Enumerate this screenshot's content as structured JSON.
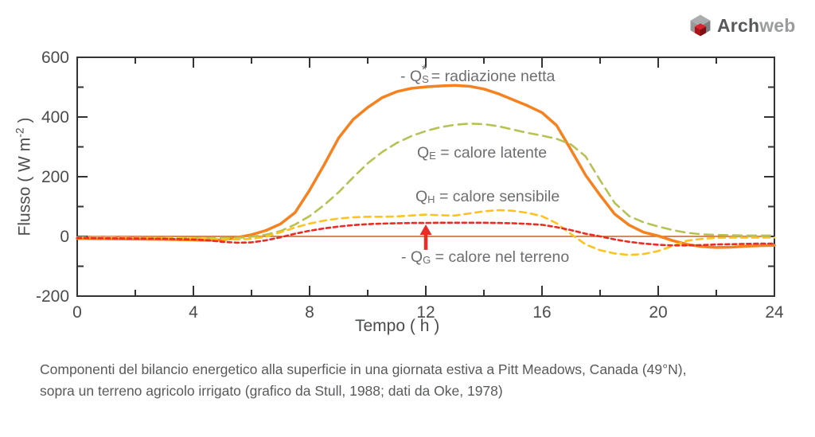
{
  "logo": {
    "bold": "Arch",
    "light": "web"
  },
  "axes": {
    "xlabel": "Tempo ( h )",
    "ylabel_prefix": "Flusso ( W m",
    "ylabel_sup": "-2",
    "ylabel_suffix": " )"
  },
  "legend": {
    "net_radiation": {
      "prefix": "- Q",
      "sub": "S",
      "sup": "*",
      "text": " = radiazione netta"
    },
    "latent_heat": {
      "prefix": "Q",
      "sub": "E",
      "sup": "",
      "text": " = calore latente"
    },
    "sensible_heat": {
      "prefix": "Q",
      "sub": "H",
      "sup": "",
      "text": " = calore sensibile"
    },
    "ground_heat": {
      "prefix": "- Q",
      "sub": "G",
      "sup": "",
      "text": " = calore nel terreno"
    }
  },
  "caption": {
    "line1": "Componenti del bilancio energetico alla superficie in una giornata estiva a Pitt Meadows, Canada (49°N),",
    "line2": "sopra un terreno agricolo irrigato (grafico da Stull, 1988; dati da Oke, 1978)"
  },
  "chart_data": {
    "type": "line",
    "xlabel": "Tempo ( h )",
    "ylabel": "Flusso ( W m-2 )",
    "x_range": [
      0,
      24
    ],
    "y_range": [
      -200,
      600
    ],
    "x_major_ticks": [
      0,
      4,
      8,
      12,
      16,
      20,
      24
    ],
    "x_minor_ticks": [
      2,
      6,
      10,
      14,
      18,
      22
    ],
    "y_major_ticks": [
      -200,
      0,
      200,
      400,
      600
    ],
    "y_minor_ticks": [
      -100,
      100,
      300,
      500
    ],
    "grid": false,
    "frame_color": "#333333",
    "tick_label_color": "#4b4c4e",
    "zero_line": {
      "y": 0,
      "color": "#c4612c"
    },
    "annotation_arrow": {
      "x": 12,
      "from_value": -45,
      "to_value": 40,
      "color": "#ee2a24"
    },
    "series": [
      {
        "name": "net_radiation",
        "label": "- Qs* = radiazione netta",
        "color": "#f5821f",
        "style": "solid",
        "width": 3.5,
        "dash": "",
        "points": [
          [
            0,
            -7
          ],
          [
            1,
            -8
          ],
          [
            2,
            -9
          ],
          [
            3,
            -10
          ],
          [
            4,
            -12
          ],
          [
            4.5,
            -13
          ],
          [
            5,
            -12
          ],
          [
            5.5,
            -4
          ],
          [
            6,
            6
          ],
          [
            6.5,
            20
          ],
          [
            7,
            42
          ],
          [
            7.5,
            80
          ],
          [
            8,
            155
          ],
          [
            8.5,
            240
          ],
          [
            9,
            330
          ],
          [
            9.5,
            392
          ],
          [
            10,
            432
          ],
          [
            10.5,
            465
          ],
          [
            11,
            485
          ],
          [
            11.5,
            496
          ],
          [
            12,
            501
          ],
          [
            12.5,
            504
          ],
          [
            13,
            506
          ],
          [
            13.5,
            503
          ],
          [
            14,
            494
          ],
          [
            14.5,
            478
          ],
          [
            15,
            458
          ],
          [
            15.5,
            438
          ],
          [
            16,
            415
          ],
          [
            16.5,
            372
          ],
          [
            17,
            290
          ],
          [
            17.5,
            205
          ],
          [
            18,
            138
          ],
          [
            18.5,
            75
          ],
          [
            19,
            38
          ],
          [
            19.5,
            14
          ],
          [
            20,
            2
          ],
          [
            20.5,
            -14
          ],
          [
            21,
            -27
          ],
          [
            21.5,
            -34
          ],
          [
            22,
            -37
          ],
          [
            22.5,
            -36
          ],
          [
            23,
            -33
          ],
          [
            23.5,
            -31
          ],
          [
            24,
            -30
          ]
        ]
      },
      {
        "name": "latent_heat",
        "label": "QE = calore latente",
        "color": "#b7c154",
        "style": "dashed",
        "width": 2.6,
        "dash": "11 7",
        "points": [
          [
            0,
            -3
          ],
          [
            1,
            -3
          ],
          [
            2,
            -4
          ],
          [
            3,
            -4
          ],
          [
            4,
            -5
          ],
          [
            5,
            -6
          ],
          [
            5.5,
            -5
          ],
          [
            6,
            -1
          ],
          [
            6.5,
            6
          ],
          [
            7,
            18
          ],
          [
            7.5,
            40
          ],
          [
            8,
            68
          ],
          [
            8.5,
            105
          ],
          [
            9,
            148
          ],
          [
            9.5,
            198
          ],
          [
            10,
            245
          ],
          [
            10.5,
            283
          ],
          [
            11,
            313
          ],
          [
            11.5,
            336
          ],
          [
            12,
            353
          ],
          [
            12.5,
            366
          ],
          [
            13,
            374
          ],
          [
            13.5,
            378
          ],
          [
            14,
            376
          ],
          [
            14.5,
            369
          ],
          [
            15,
            358
          ],
          [
            15.5,
            347
          ],
          [
            16,
            338
          ],
          [
            16.5,
            327
          ],
          [
            17,
            308
          ],
          [
            17.5,
            268
          ],
          [
            18,
            188
          ],
          [
            18.5,
            112
          ],
          [
            19,
            68
          ],
          [
            19.5,
            47
          ],
          [
            20,
            33
          ],
          [
            20.5,
            21
          ],
          [
            21,
            12
          ],
          [
            21.5,
            7
          ],
          [
            22,
            5
          ],
          [
            22.5,
            4
          ],
          [
            23,
            3
          ],
          [
            23.5,
            3
          ],
          [
            24,
            3
          ]
        ]
      },
      {
        "name": "sensible_heat",
        "label": "QH = calore sensibile",
        "color": "#ffc31e",
        "style": "dashed",
        "width": 2.6,
        "dash": "8 6",
        "points": [
          [
            0,
            -4
          ],
          [
            1,
            -4
          ],
          [
            2,
            -5
          ],
          [
            3,
            -5
          ],
          [
            4,
            -6
          ],
          [
            4.5,
            -7
          ],
          [
            5,
            -9
          ],
          [
            5.5,
            -10
          ],
          [
            6,
            -8
          ],
          [
            6.5,
            -1
          ],
          [
            7,
            14
          ],
          [
            7.5,
            30
          ],
          [
            8,
            43
          ],
          [
            8.5,
            53
          ],
          [
            9,
            60
          ],
          [
            9.5,
            64
          ],
          [
            10,
            66
          ],
          [
            10.5,
            66
          ],
          [
            11,
            67
          ],
          [
            11.5,
            70
          ],
          [
            12,
            73
          ],
          [
            12.5,
            71
          ],
          [
            13,
            70
          ],
          [
            13.5,
            77
          ],
          [
            14,
            84
          ],
          [
            14.5,
            88
          ],
          [
            15,
            86
          ],
          [
            15.5,
            79
          ],
          [
            16,
            68
          ],
          [
            16.5,
            44
          ],
          [
            17,
            8
          ],
          [
            17.5,
            -27
          ],
          [
            18,
            -46
          ],
          [
            18.5,
            -57
          ],
          [
            19,
            -62
          ],
          [
            19.5,
            -59
          ],
          [
            20,
            -49
          ],
          [
            20.5,
            -32
          ],
          [
            21,
            -14
          ],
          [
            21.5,
            -8
          ],
          [
            22,
            -5
          ],
          [
            22.5,
            -4
          ],
          [
            23,
            -4
          ],
          [
            23.5,
            -4
          ],
          [
            24,
            -4
          ]
        ]
      },
      {
        "name": "ground_heat",
        "label": "- QG = calore nel terreno",
        "color": "#ee2a24",
        "style": "dashed",
        "width": 2.6,
        "dash": "5 4",
        "points": [
          [
            0,
            -5
          ],
          [
            1,
            -6
          ],
          [
            2,
            -7
          ],
          [
            3,
            -8
          ],
          [
            4,
            -10
          ],
          [
            4.5,
            -13
          ],
          [
            5,
            -18
          ],
          [
            5.5,
            -21
          ],
          [
            6,
            -20
          ],
          [
            6.5,
            -13
          ],
          [
            7,
            -3
          ],
          [
            7.5,
            9
          ],
          [
            8,
            19
          ],
          [
            8.5,
            27
          ],
          [
            9,
            33
          ],
          [
            9.5,
            38
          ],
          [
            10,
            41
          ],
          [
            10.5,
            43
          ],
          [
            11,
            44
          ],
          [
            11.5,
            45
          ],
          [
            12,
            45
          ],
          [
            12.5,
            46
          ],
          [
            13,
            46
          ],
          [
            13.5,
            46
          ],
          [
            14,
            46
          ],
          [
            14.5,
            45
          ],
          [
            15,
            44
          ],
          [
            15.5,
            42
          ],
          [
            16,
            39
          ],
          [
            16.5,
            31
          ],
          [
            17,
            21
          ],
          [
            17.5,
            9
          ],
          [
            18,
            0
          ],
          [
            18.5,
            -10
          ],
          [
            19,
            -18
          ],
          [
            19.5,
            -24
          ],
          [
            20,
            -28
          ],
          [
            20.5,
            -30
          ],
          [
            21,
            -30
          ],
          [
            21.5,
            -29
          ],
          [
            22,
            -27
          ],
          [
            22.5,
            -26
          ],
          [
            23,
            -25
          ],
          [
            23.5,
            -24
          ],
          [
            24,
            -24
          ]
        ]
      }
    ]
  }
}
